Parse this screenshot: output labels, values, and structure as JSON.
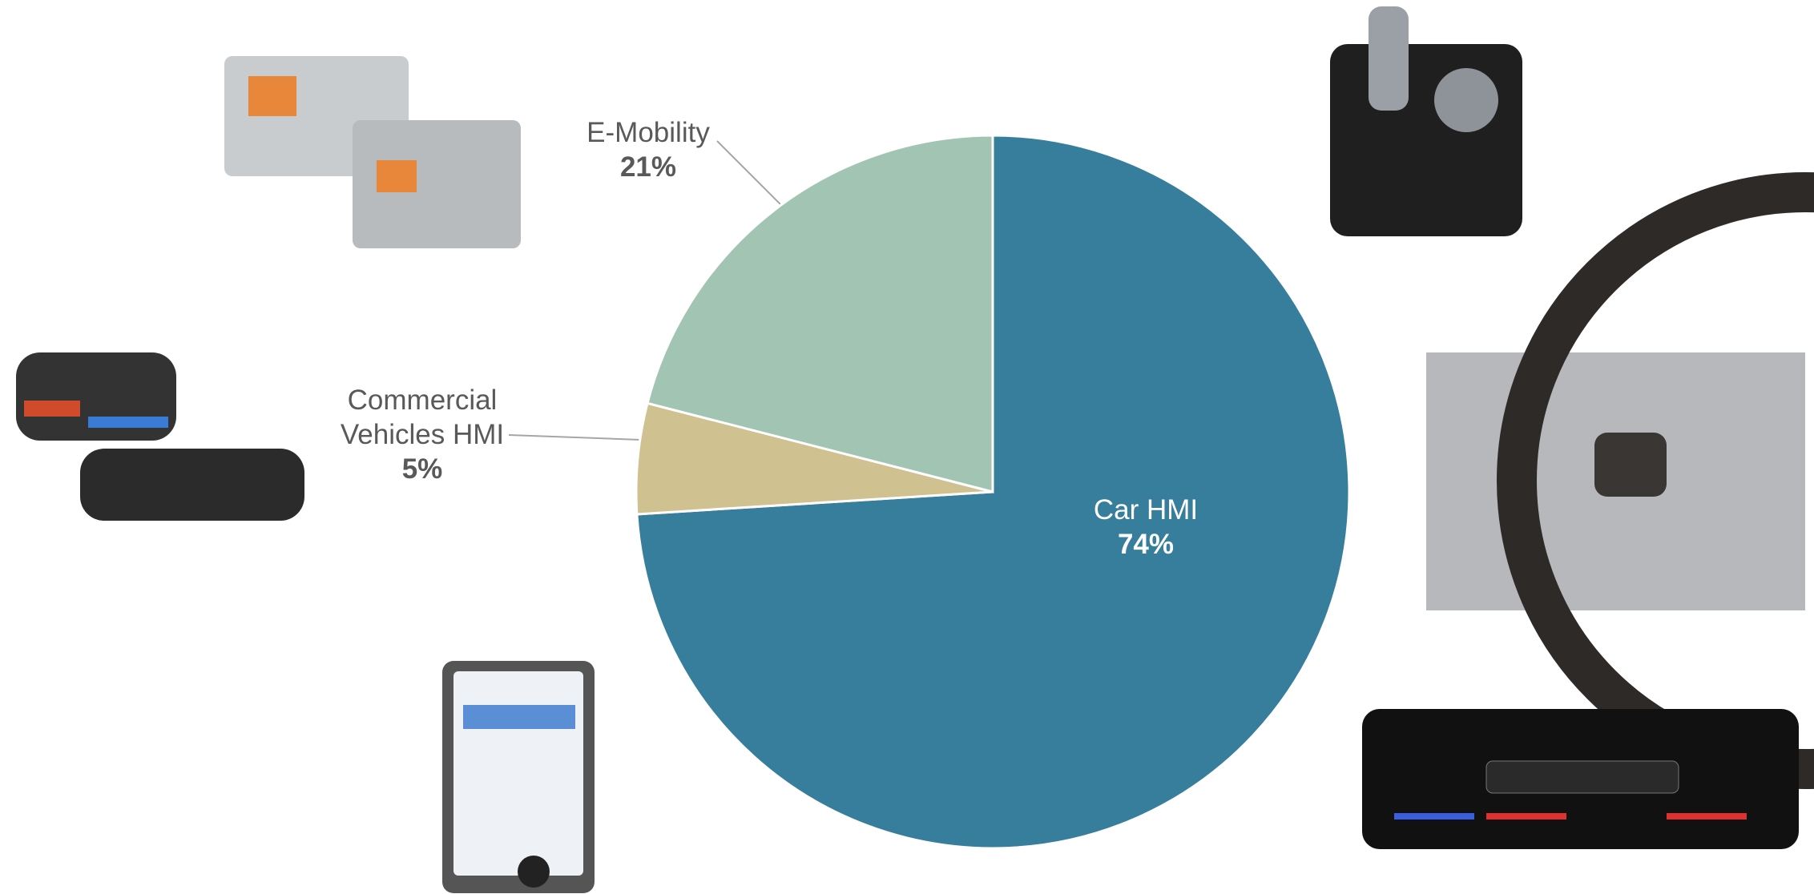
{
  "chart_data": {
    "type": "pie",
    "categories": [
      "Car HMI",
      "Commercial Vehicles HMI",
      "E-Mobility"
    ],
    "values": [
      74,
      5,
      21
    ],
    "value_labels": [
      "74%",
      "5%",
      "21%"
    ],
    "colors": [
      "#377e9c",
      "#cfc190",
      "#a2c4b2"
    ]
  }
}
